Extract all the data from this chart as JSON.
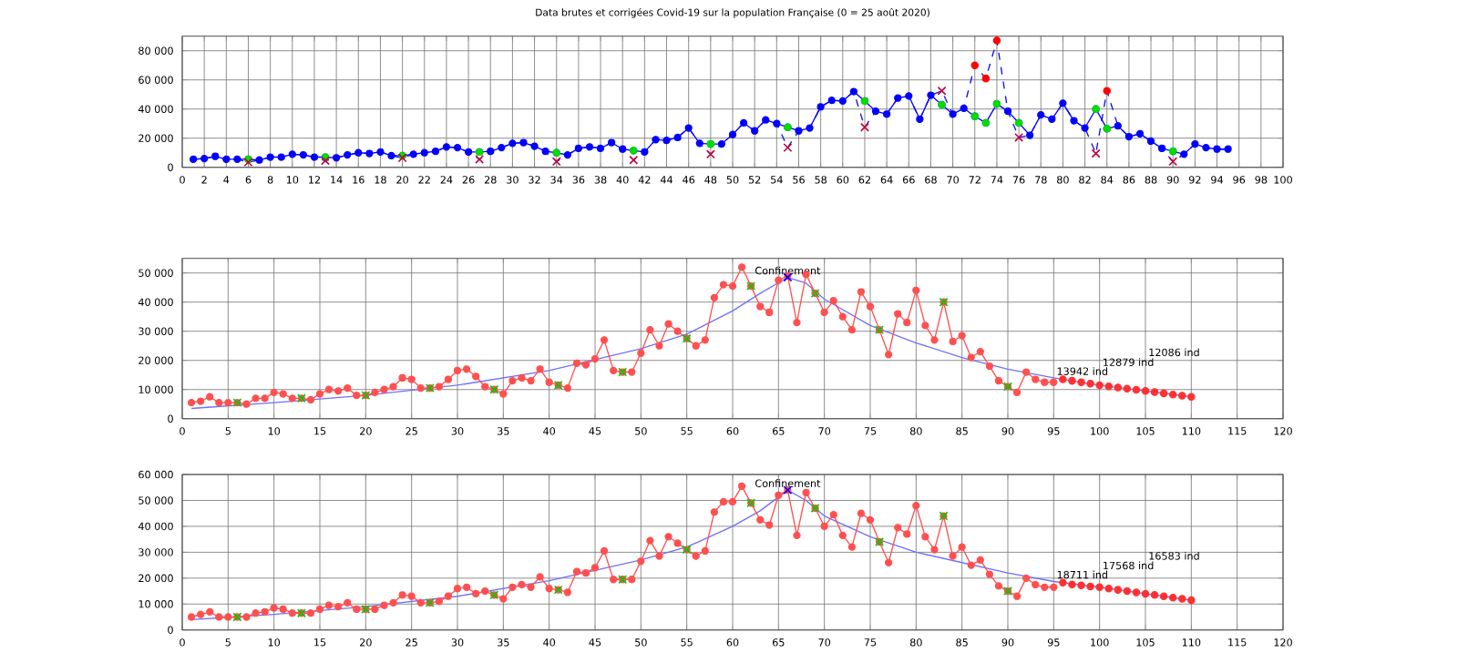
{
  "chart_data": [
    {
      "type": "line",
      "title": "Data brutes et corrigées Covid-19 sur la population Française (0 = 25 août 2020)",
      "grid": true,
      "xlim": [
        0,
        100
      ],
      "xticks": [
        0,
        2,
        4,
        6,
        8,
        10,
        12,
        14,
        16,
        18,
        20,
        22,
        24,
        26,
        28,
        30,
        32,
        34,
        36,
        38,
        40,
        42,
        44,
        46,
        48,
        50,
        52,
        54,
        56,
        58,
        60,
        62,
        64,
        66,
        68,
        70,
        72,
        74,
        76,
        78,
        80,
        82,
        84,
        86,
        88,
        90,
        92,
        94,
        96,
        98,
        100
      ],
      "ylim": [
        0,
        90000
      ],
      "yticks": [
        0,
        {
          "value": 20000,
          "label": "20 000"
        },
        {
          "value": 40000,
          "label": "40 000"
        },
        {
          "value": 60000,
          "label": "60 000"
        },
        {
          "value": 80000,
          "label": "80 000"
        }
      ],
      "x": [
        1,
        2,
        3,
        4,
        5,
        6,
        7,
        8,
        9,
        10,
        11,
        12,
        13,
        14,
        15,
        16,
        17,
        18,
        19,
        20,
        21,
        22,
        23,
        24,
        25,
        26,
        27,
        28,
        29,
        30,
        31,
        32,
        33,
        34,
        35,
        36,
        37,
        38,
        39,
        40,
        41,
        42,
        43,
        44,
        45,
        46,
        47,
        48,
        49,
        50,
        51,
        52,
        53,
        54,
        55,
        56,
        57,
        58,
        59,
        60,
        61,
        62,
        63,
        64,
        65,
        66,
        67,
        68,
        69,
        70,
        71,
        72,
        73,
        74,
        75,
        76,
        77,
        78,
        79,
        80,
        81,
        82,
        83,
        84,
        85,
        86,
        87,
        88,
        89,
        90,
        91,
        92,
        93,
        94,
        95
      ],
      "series": [
        {
          "type": "line",
          "color": "#1010e8",
          "line_style": "dashed",
          "marker": "none",
          "values": [
            5500,
            6000,
            7500,
            5500,
            5500,
            3500,
            5000,
            7000,
            7000,
            9000,
            8500,
            7000,
            4500,
            6500,
            8500,
            10000,
            9500,
            10500,
            8000,
            6500,
            9000,
            10000,
            11000,
            14000,
            13500,
            10500,
            5500,
            11000,
            13500,
            16500,
            17000,
            14500,
            11000,
            4000,
            8500,
            13000,
            14000,
            13000,
            17000,
            12500,
            5000,
            10500,
            19000,
            18500,
            20500,
            27000,
            16500,
            9000,
            16000,
            22500,
            30500,
            25000,
            32500,
            30000,
            13500,
            25000,
            27000,
            41500,
            46000,
            45500,
            52000,
            27500,
            38500,
            36500,
            47500,
            49000,
            33000,
            49500,
            52500,
            36500,
            40500,
            70000,
            61000,
            87000,
            38500,
            20500,
            22000,
            36000,
            33000,
            44000,
            32000,
            27000,
            9500,
            52500,
            28500,
            21000,
            23000,
            18000,
            13000,
            4000,
            9000,
            16000,
            13500,
            12500,
            12500
          ]
        },
        {
          "type": "line",
          "color": "#0000ff",
          "line_style": "solid",
          "marker": "circle",
          "values": [
            5500,
            6000,
            7500,
            5500,
            5500,
            5500,
            5000,
            7000,
            7000,
            9000,
            8500,
            7000,
            7000,
            6500,
            8500,
            10000,
            9500,
            10500,
            8000,
            8000,
            9000,
            10000,
            11000,
            14000,
            13500,
            10500,
            10500,
            11000,
            13500,
            16500,
            17000,
            14500,
            11000,
            10000,
            8500,
            13000,
            14000,
            13000,
            17000,
            12500,
            11500,
            10500,
            19000,
            18500,
            20500,
            27000,
            16500,
            16000,
            16000,
            22500,
            30500,
            25000,
            32500,
            30000,
            27500,
            25000,
            27000,
            41500,
            46000,
            45500,
            52000,
            45500,
            38500,
            36500,
            47500,
            49000,
            33000,
            49500,
            43000,
            36500,
            40500,
            35000,
            30500,
            43500,
            38500,
            30500,
            22000,
            36000,
            33000,
            44000,
            32000,
            27000,
            40000,
            26500,
            28500,
            21000,
            23000,
            18000,
            13000,
            11000,
            9000,
            16000,
            13500,
            12500,
            12500
          ]
        },
        {
          "type": "scatter",
          "color": "#00dd00",
          "marker": "circle",
          "x": [
            6,
            13,
            20,
            27,
            34,
            41,
            48,
            55,
            62,
            69,
            72,
            73,
            74,
            76,
            83,
            84,
            90
          ],
          "values": [
            5500,
            7000,
            8000,
            10500,
            10000,
            11500,
            16000,
            27500,
            45500,
            43000,
            35000,
            30500,
            43500,
            30500,
            40000,
            26500,
            11000
          ]
        },
        {
          "type": "scatter",
          "color": "#c0003a",
          "marker": "cross",
          "x": [
            6,
            13,
            20,
            27,
            34,
            41,
            48,
            55,
            62,
            69,
            76,
            83,
            90
          ],
          "values": [
            3500,
            4500,
            6500,
            5500,
            4000,
            5000,
            9000,
            13500,
            27500,
            52500,
            20500,
            9500,
            4000
          ]
        },
        {
          "type": "scatter",
          "color": "#ff0000",
          "marker": "circle",
          "x": [
            72,
            73,
            74,
            84
          ],
          "values": [
            70000,
            61000,
            87000,
            52500
          ]
        }
      ]
    },
    {
      "type": "line",
      "grid": true,
      "xlim": [
        0,
        120
      ],
      "xticks": [
        0,
        5,
        10,
        15,
        20,
        25,
        30,
        35,
        40,
        45,
        50,
        55,
        60,
        65,
        70,
        75,
        80,
        85,
        90,
        95,
        100,
        105,
        110,
        115,
        120
      ],
      "ylim": [
        0,
        55000
      ],
      "yticks": [
        0,
        {
          "value": 10000,
          "label": "10 000"
        },
        {
          "value": 20000,
          "label": "20 000"
        },
        {
          "value": 30000,
          "label": "30 000"
        },
        {
          "value": 40000,
          "label": "40 000"
        },
        {
          "value": 50000,
          "label": "50 000"
        }
      ],
      "x": [
        1,
        2,
        3,
        4,
        5,
        6,
        7,
        8,
        9,
        10,
        11,
        12,
        13,
        14,
        15,
        16,
        17,
        18,
        19,
        20,
        21,
        22,
        23,
        24,
        25,
        26,
        27,
        28,
        29,
        30,
        31,
        32,
        33,
        34,
        35,
        36,
        37,
        38,
        39,
        40,
        41,
        42,
        43,
        44,
        45,
        46,
        47,
        48,
        49,
        50,
        51,
        52,
        53,
        54,
        55,
        56,
        57,
        58,
        59,
        60,
        61,
        62,
        63,
        64,
        65,
        66,
        67,
        68,
        69,
        70,
        71,
        72,
        73,
        74,
        75,
        76,
        77,
        78,
        79,
        80,
        81,
        82,
        83,
        84,
        85,
        86,
        87,
        88,
        89,
        90,
        91,
        92,
        93,
        94,
        95
      ],
      "annotations": [
        {
          "text": "Confinement",
          "x": 66,
          "y": 48500
        },
        {
          "text": "13942 ind",
          "x": 95,
          "y": 13942
        },
        {
          "text": "12879 ind",
          "x": 100,
          "y": 12879
        },
        {
          "text": "12086 ind",
          "x": 105,
          "y": 12086
        }
      ],
      "series": [
        {
          "type": "line",
          "color": "#7070ff",
          "marker": "none",
          "x": [
            1,
            10,
            20,
            30,
            40,
            50,
            55,
            60,
            63,
            66,
            68,
            70,
            75,
            80,
            85,
            90,
            95,
            100,
            105,
            110
          ],
          "values": [
            3500,
            5500,
            8000,
            11500,
            16500,
            24000,
            29000,
            37000,
            43000,
            48500,
            46500,
            41000,
            32000,
            26000,
            21000,
            17000,
            14000,
            11500,
            9500,
            7500
          ]
        },
        {
          "type": "line",
          "color": "#ff5050",
          "marker": "circle",
          "values": [
            5500,
            6000,
            7500,
            5500,
            5500,
            5500,
            5000,
            7000,
            7000,
            9000,
            8500,
            7000,
            7000,
            6500,
            8500,
            10000,
            9500,
            10500,
            8000,
            8000,
            9000,
            10000,
            11000,
            14000,
            13500,
            10500,
            10500,
            11000,
            13500,
            16500,
            17000,
            14500,
            11000,
            10000,
            8500,
            13000,
            14000,
            13000,
            17000,
            12500,
            11500,
            10500,
            19000,
            18500,
            20500,
            27000,
            16500,
            16000,
            16000,
            22500,
            30500,
            25000,
            32500,
            30000,
            27500,
            25000,
            27000,
            41500,
            46000,
            45500,
            52000,
            45500,
            38500,
            36500,
            47500,
            49000,
            33000,
            49500,
            43000,
            36500,
            40500,
            35000,
            30500,
            43500,
            38500,
            30500,
            22000,
            36000,
            33000,
            44000,
            32000,
            27000,
            40000,
            26500,
            28500,
            21000,
            23000,
            18000,
            13000,
            11000,
            9000,
            16000,
            13500,
            12500,
            12500
          ]
        },
        {
          "type": "scatter",
          "color": "#00cc00",
          "marker": "cross",
          "x": [
            6,
            13,
            20,
            27,
            34,
            41,
            48,
            55,
            62,
            69,
            76,
            83,
            90
          ],
          "values": [
            5500,
            7000,
            8000,
            10500,
            10000,
            11500,
            16000,
            27500,
            45500,
            43000,
            30500,
            40000,
            11000
          ]
        },
        {
          "type": "scatter",
          "color": "#ff3030",
          "marker": "circle",
          "x": [
            96,
            97,
            98,
            99,
            100,
            101,
            102,
            103,
            104,
            105,
            106,
            107,
            108,
            109,
            110
          ],
          "values": [
            13500,
            13000,
            12500,
            12000,
            11500,
            11100,
            10700,
            10300,
            9900,
            9500,
            9100,
            8700,
            8300,
            7900,
            7500
          ]
        },
        {
          "type": "scatter",
          "color": "#0000ff",
          "marker": "cross",
          "x": [
            66
          ],
          "values": [
            48500
          ]
        }
      ]
    },
    {
      "type": "line",
      "grid": true,
      "xlim": [
        0,
        120
      ],
      "xticks": [
        0,
        5,
        10,
        15,
        20,
        25,
        30,
        35,
        40,
        45,
        50,
        55,
        60,
        65,
        70,
        75,
        80,
        85,
        90,
        95,
        100,
        105,
        110,
        115,
        120
      ],
      "ylim": [
        0,
        60000
      ],
      "yticks": [
        0,
        {
          "value": 10000,
          "label": "10 000"
        },
        {
          "value": 20000,
          "label": "20 000"
        },
        {
          "value": 30000,
          "label": "30 000"
        },
        {
          "value": 40000,
          "label": "40 000"
        },
        {
          "value": 50000,
          "label": "50 000"
        },
        {
          "value": 60000,
          "label": "60 000"
        }
      ],
      "x": [
        1,
        2,
        3,
        4,
        5,
        6,
        7,
        8,
        9,
        10,
        11,
        12,
        13,
        14,
        15,
        16,
        17,
        18,
        19,
        20,
        21,
        22,
        23,
        24,
        25,
        26,
        27,
        28,
        29,
        30,
        31,
        32,
        33,
        34,
        35,
        36,
        37,
        38,
        39,
        40,
        41,
        42,
        43,
        44,
        45,
        46,
        47,
        48,
        49,
        50,
        51,
        52,
        53,
        54,
        55,
        56,
        57,
        58,
        59,
        60,
        61,
        62,
        63,
        64,
        65,
        66,
        67,
        68,
        69,
        70,
        71,
        72,
        73,
        74,
        75,
        76,
        77,
        78,
        79,
        80,
        81,
        82,
        83,
        84,
        85,
        86,
        87,
        88,
        89,
        90,
        91,
        92,
        93,
        94,
        95
      ],
      "annotations": [
        {
          "text": "Confinement",
          "x": 66,
          "y": 54000
        },
        {
          "text": "18711 ind",
          "x": 95,
          "y": 18711
        },
        {
          "text": "17568 ind",
          "x": 100,
          "y": 17568
        },
        {
          "text": "16583 ind",
          "x": 105,
          "y": 16583
        }
      ],
      "series": [
        {
          "type": "line",
          "color": "#7070ff",
          "marker": "none",
          "x": [
            1,
            10,
            20,
            30,
            40,
            50,
            55,
            60,
            63,
            66,
            68,
            70,
            75,
            80,
            85,
            90,
            95,
            100,
            105,
            110
          ],
          "values": [
            4000,
            6000,
            9000,
            13000,
            19000,
            27000,
            32000,
            40000,
            46000,
            54000,
            50000,
            44000,
            36000,
            30000,
            26000,
            22000,
            18700,
            16500,
            14000,
            11500
          ]
        },
        {
          "type": "line",
          "color": "#ff5050",
          "marker": "circle",
          "values": [
            5000,
            6000,
            7000,
            5000,
            5000,
            5000,
            5000,
            6500,
            7000,
            8500,
            8000,
            6500,
            6500,
            6500,
            8000,
            9500,
            9000,
            10500,
            8000,
            8000,
            8000,
            9500,
            10500,
            13500,
            13000,
            10500,
            10500,
            11000,
            13000,
            16000,
            16500,
            14000,
            15000,
            13500,
            12000,
            16500,
            17500,
            16500,
            20500,
            16000,
            15500,
            14500,
            22500,
            22000,
            24000,
            30500,
            19500,
            19500,
            19500,
            26500,
            34500,
            28500,
            36000,
            33500,
            31000,
            28500,
            30500,
            45500,
            49500,
            49500,
            55500,
            49000,
            42500,
            40500,
            52000,
            54000,
            36500,
            53000,
            47000,
            40000,
            44500,
            36500,
            32000,
            45000,
            42500,
            34000,
            26000,
            39500,
            37000,
            48000,
            36000,
            31000,
            44000,
            28500,
            32000,
            25000,
            27000,
            21500,
            17000,
            15000,
            13000,
            20000,
            17500,
            16500,
            16500
          ]
        },
        {
          "type": "scatter",
          "color": "#00cc00",
          "marker": "cross",
          "x": [
            6,
            13,
            20,
            27,
            34,
            41,
            48,
            55,
            62,
            69,
            76,
            83,
            90
          ],
          "values": [
            5000,
            6500,
            8000,
            10500,
            13500,
            15500,
            19500,
            31000,
            49000,
            47000,
            34000,
            44000,
            15000
          ]
        },
        {
          "type": "scatter",
          "color": "#ff3030",
          "marker": "circle",
          "x": [
            96,
            97,
            98,
            99,
            100,
            101,
            102,
            103,
            104,
            105,
            106,
            107,
            108,
            109,
            110
          ],
          "values": [
            18300,
            17600,
            17200,
            16800,
            16500,
            16000,
            15500,
            15000,
            14500,
            14000,
            13500,
            13000,
            12500,
            12000,
            11500
          ]
        },
        {
          "type": "scatter",
          "color": "#0000ff",
          "marker": "cross",
          "x": [
            66
          ],
          "values": [
            54000
          ]
        }
      ]
    }
  ]
}
